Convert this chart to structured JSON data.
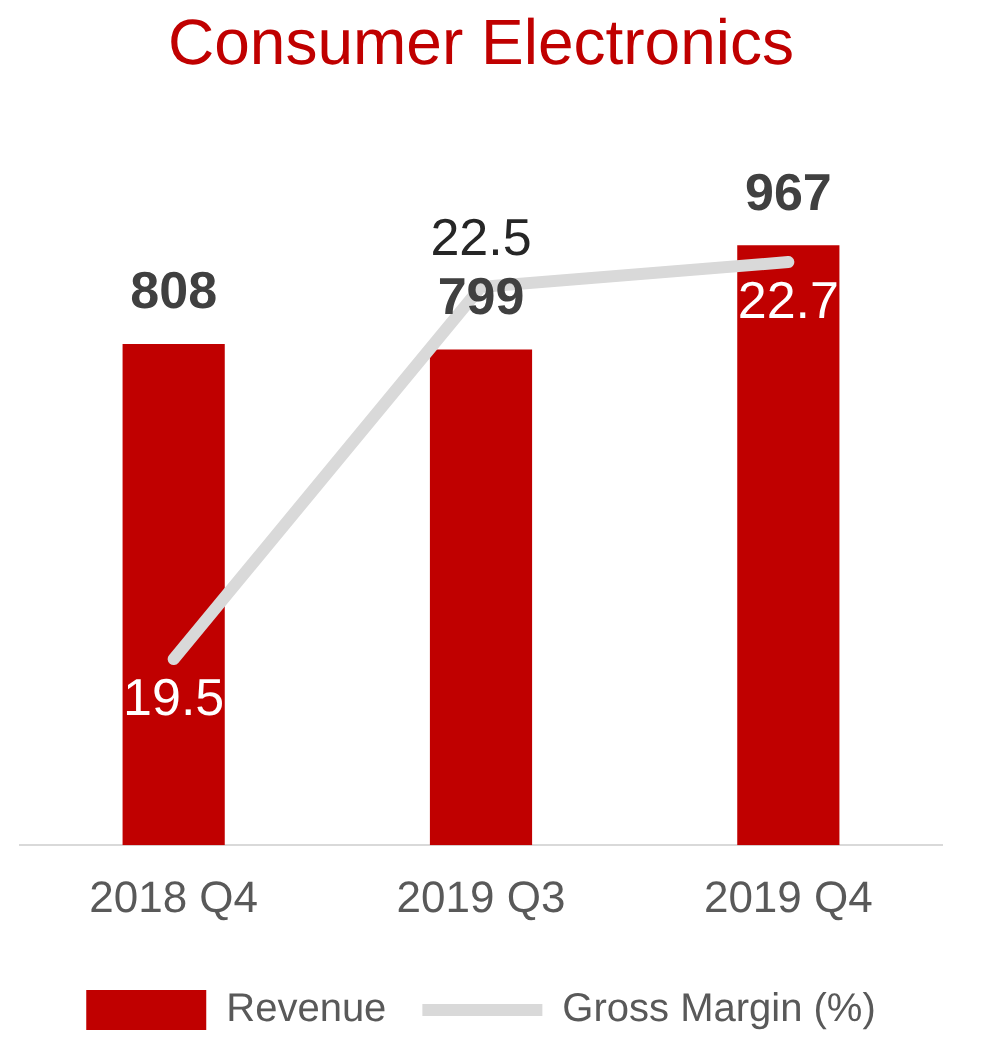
{
  "chart_data": {
    "type": "bar",
    "title": "Consumer Electronics",
    "categories": [
      "2018 Q4",
      "2019 Q3",
      "2019 Q4"
    ],
    "series": [
      {
        "name": "Revenue",
        "color": "#c00000",
        "values": [
          808,
          799,
          967
        ]
      },
      {
        "name": "Gross Margin (%)",
        "type": "line",
        "axis": "y2",
        "color": "#d9d9d9",
        "values": [
          19.5,
          22.5,
          22.7
        ]
      }
    ],
    "data_labels": true,
    "legend": "bottom",
    "marker": "none",
    "grid": false
  }
}
